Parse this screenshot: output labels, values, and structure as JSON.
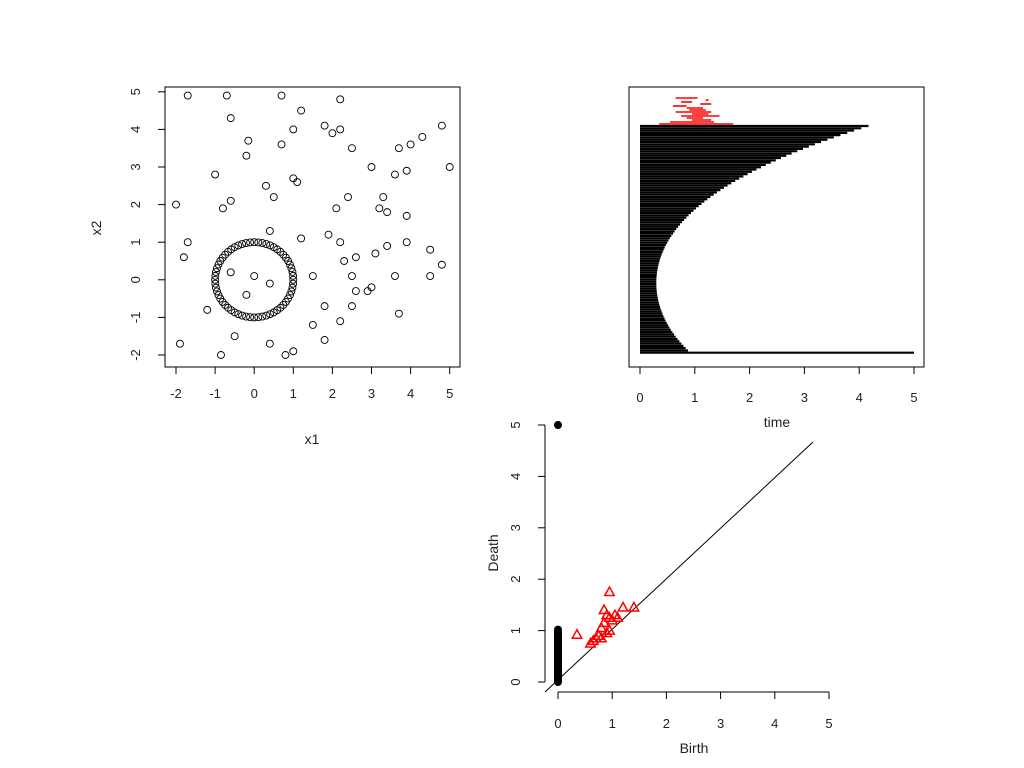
{
  "figure": {
    "panels": [
      "scatter",
      "barcode",
      "diagram"
    ]
  },
  "chart_data": [
    {
      "type": "scatter",
      "xlabel": "x1",
      "ylabel": "x2",
      "xlim": [
        -2,
        5
      ],
      "ylim": [
        -2,
        5
      ],
      "xticks": [
        "-2",
        "-1",
        "0",
        "1",
        "2",
        "3",
        "4",
        "5"
      ],
      "yticks": [
        "-2",
        "-1",
        "0",
        "1",
        "2",
        "3",
        "4",
        "5"
      ],
      "marker": "open-circle",
      "grid": false,
      "circle_points": {
        "center": [
          0,
          0
        ],
        "radius": 1,
        "count": 60,
        "description_x": "points on unit circle around origin"
      },
      "points": [
        [
          -1.7,
          4.9
        ],
        [
          -0.7,
          4.9
        ],
        [
          0.7,
          4.9
        ],
        [
          2.2,
          4.8
        ],
        [
          -0.6,
          4.3
        ],
        [
          1.2,
          4.5
        ],
        [
          1.0,
          4.0
        ],
        [
          1.8,
          4.1
        ],
        [
          2.2,
          4.0
        ],
        [
          2.0,
          3.9
        ],
        [
          4.8,
          4.1
        ],
        [
          4.3,
          3.8
        ],
        [
          4.0,
          3.6
        ],
        [
          3.7,
          3.5
        ],
        [
          -0.15,
          3.7
        ],
        [
          0.7,
          3.6
        ],
        [
          2.5,
          3.5
        ],
        [
          -0.2,
          3.3
        ],
        [
          3.0,
          3.0
        ],
        [
          5.0,
          3.0
        ],
        [
          -1.0,
          2.8
        ],
        [
          3.6,
          2.8
        ],
        [
          3.9,
          2.9
        ],
        [
          1.0,
          2.7
        ],
        [
          1.1,
          2.6
        ],
        [
          0.3,
          2.5
        ],
        [
          -0.6,
          2.1
        ],
        [
          0.5,
          2.2
        ],
        [
          2.4,
          2.2
        ],
        [
          3.3,
          2.2
        ],
        [
          -2.0,
          2.0
        ],
        [
          -0.8,
          1.9
        ],
        [
          2.1,
          1.9
        ],
        [
          3.2,
          1.9
        ],
        [
          3.4,
          1.8
        ],
        [
          3.9,
          1.7
        ],
        [
          0.4,
          1.3
        ],
        [
          1.9,
          1.2
        ],
        [
          1.2,
          1.1
        ],
        [
          -1.7,
          1.0
        ],
        [
          2.2,
          1.0
        ],
        [
          3.4,
          0.9
        ],
        [
          3.9,
          1.0
        ],
        [
          4.5,
          0.8
        ],
        [
          -1.8,
          0.6
        ],
        [
          2.6,
          0.6
        ],
        [
          3.1,
          0.7
        ],
        [
          2.3,
          0.5
        ],
        [
          4.8,
          0.4
        ],
        [
          1.5,
          0.1
        ],
        [
          2.5,
          0.1
        ],
        [
          3.6,
          0.1
        ],
        [
          4.5,
          0.1
        ],
        [
          0.0,
          0.1
        ],
        [
          0.4,
          -0.1
        ],
        [
          -0.6,
          0.2
        ],
        [
          2.9,
          -0.3
        ],
        [
          3.0,
          -0.2
        ],
        [
          2.6,
          -0.3
        ],
        [
          -0.2,
          -0.4
        ],
        [
          2.5,
          -0.7
        ],
        [
          1.8,
          -0.7
        ],
        [
          -1.2,
          -0.8
        ],
        [
          3.7,
          -0.9
        ],
        [
          1.5,
          -1.2
        ],
        [
          2.2,
          -1.1
        ],
        [
          -0.5,
          -1.5
        ],
        [
          1.8,
          -1.6
        ],
        [
          -1.9,
          -1.7
        ],
        [
          0.4,
          -1.7
        ],
        [
          0.8,
          -2.0
        ],
        [
          1.0,
          -1.9
        ],
        [
          -0.85,
          -2.0
        ]
      ]
    },
    {
      "type": "barcode",
      "xlabel": "time",
      "ylabel": "",
      "xlim": [
        0,
        5
      ],
      "xticks": [
        "0",
        "1",
        "2",
        "3",
        "4",
        "5"
      ],
      "dim0": {
        "color": "#000000",
        "count": 100,
        "max_death": 4.15,
        "infinite_bar_end": 5.0,
        "note": "dense black H0 bars starting at 0 with deaths decaying from about 4.15 to 0"
      },
      "dim1": {
        "color": "#ff0000",
        "bars": [
          [
            0.65,
            1.05
          ],
          [
            1.2,
            1.25
          ],
          [
            0.75,
            0.95
          ],
          [
            1.1,
            1.3
          ],
          [
            0.6,
            0.85
          ],
          [
            0.85,
            1.15
          ],
          [
            0.9,
            1.2
          ],
          [
            0.65,
            1.3
          ],
          [
            0.95,
            1.25
          ],
          [
            0.75,
            1.45
          ],
          [
            0.85,
            1.15
          ],
          [
            0.95,
            1.3
          ],
          [
            0.55,
            1.35
          ],
          [
            0.35,
            1.7
          ]
        ]
      }
    },
    {
      "type": "scatter",
      "subtype": "persistence-diagram",
      "xlabel": "Birth",
      "ylabel": "Death",
      "xlim": [
        0,
        5
      ],
      "ylim": [
        0,
        5
      ],
      "xticks": [
        "0",
        "1",
        "2",
        "3",
        "4",
        "5"
      ],
      "yticks": [
        "0",
        "1",
        "2",
        "3",
        "4",
        "5"
      ],
      "diagonal": true,
      "series": [
        {
          "dimension": 0,
          "marker": "filled-circle",
          "color": "#000000",
          "points": [
            [
              0,
              5.0
            ],
            [
              0,
              1.02
            ],
            [
              0,
              0.98
            ],
            [
              0,
              0.95
            ],
            [
              0,
              0.92
            ],
            [
              0,
              0.9
            ],
            [
              0,
              0.88
            ],
            [
              0,
              0.85
            ],
            [
              0,
              0.82
            ],
            [
              0,
              0.8
            ],
            [
              0,
              0.78
            ],
            [
              0,
              0.75
            ],
            [
              0,
              0.72
            ],
            [
              0,
              0.7
            ],
            [
              0,
              0.68
            ],
            [
              0,
              0.65
            ],
            [
              0,
              0.62
            ],
            [
              0,
              0.6
            ],
            [
              0,
              0.57
            ],
            [
              0,
              0.55
            ],
            [
              0,
              0.52
            ],
            [
              0,
              0.5
            ],
            [
              0,
              0.47
            ],
            [
              0,
              0.45
            ],
            [
              0,
              0.42
            ],
            [
              0,
              0.4
            ],
            [
              0,
              0.37
            ],
            [
              0,
              0.35
            ],
            [
              0,
              0.32
            ],
            [
              0,
              0.3
            ],
            [
              0,
              0.27
            ],
            [
              0,
              0.25
            ],
            [
              0,
              0.22
            ],
            [
              0,
              0.2
            ],
            [
              0,
              0.17
            ],
            [
              0,
              0.15
            ],
            [
              0,
              0.12
            ],
            [
              0,
              0.1
            ],
            [
              0,
              0.07
            ],
            [
              0,
              0.05
            ],
            [
              0,
              0.03
            ],
            [
              0,
              0.0
            ]
          ]
        },
        {
          "dimension": 1,
          "marker": "open-triangle",
          "color": "#ff0000",
          "points": [
            [
              0.35,
              0.92
            ],
            [
              0.6,
              0.75
            ],
            [
              0.65,
              0.8
            ],
            [
              0.7,
              0.85
            ],
            [
              0.75,
              0.9
            ],
            [
              0.8,
              0.85
            ],
            [
              0.8,
              1.05
            ],
            [
              0.85,
              1.15
            ],
            [
              0.85,
              1.4
            ],
            [
              0.9,
              0.95
            ],
            [
              0.95,
              1.0
            ],
            [
              0.95,
              1.25
            ],
            [
              1.0,
              1.2
            ],
            [
              1.05,
              1.3
            ],
            [
              1.1,
              1.25
            ],
            [
              1.2,
              1.45
            ],
            [
              1.4,
              1.45
            ],
            [
              0.95,
              1.75
            ],
            [
              0.9,
              1.3
            ]
          ]
        }
      ]
    }
  ]
}
